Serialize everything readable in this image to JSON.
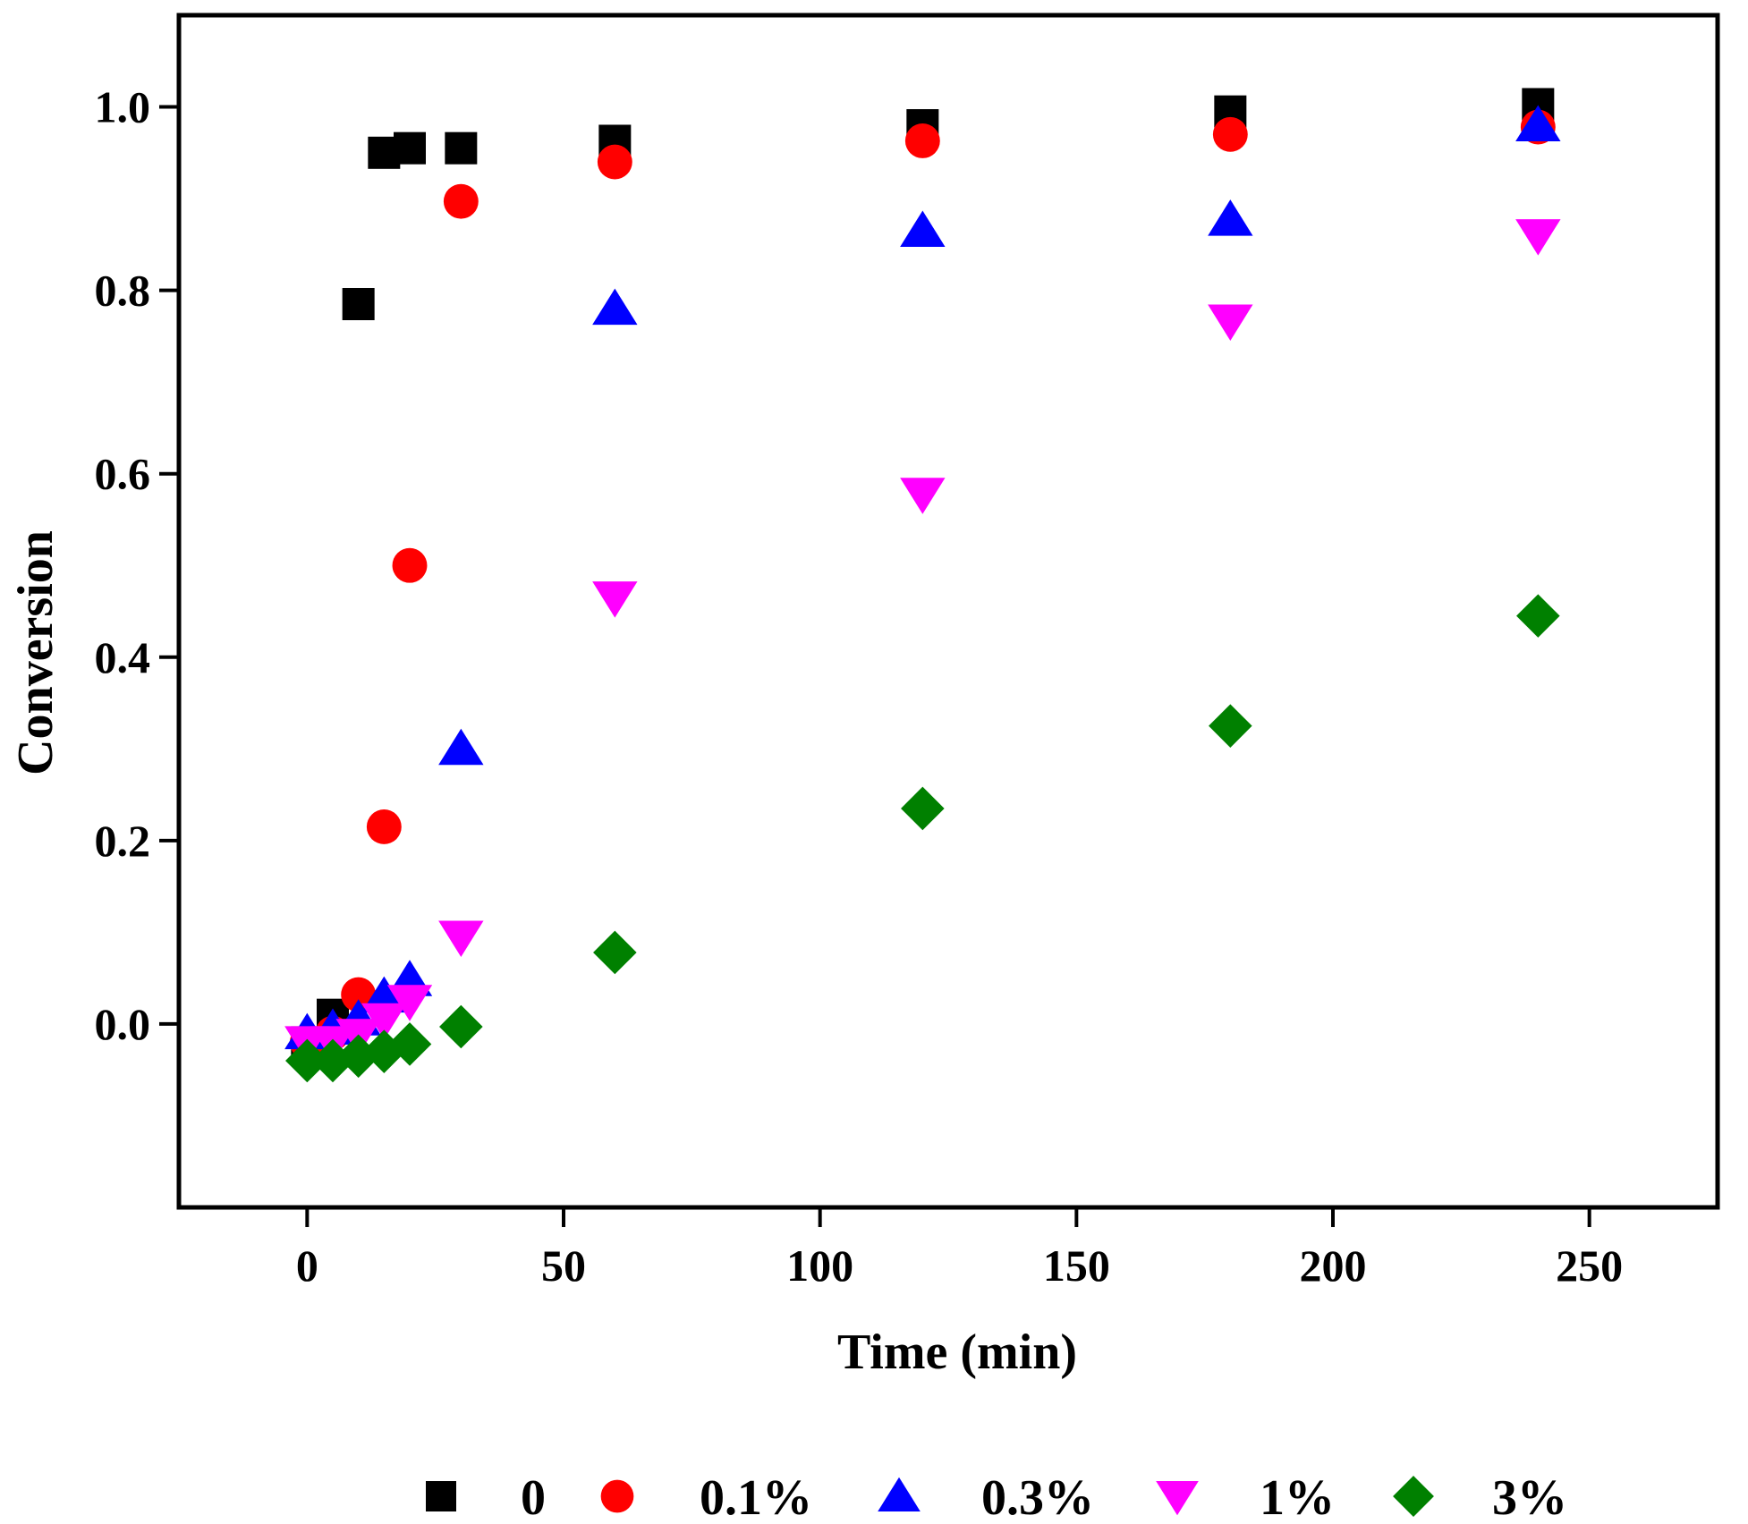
{
  "chart_data": {
    "type": "scatter",
    "title": "",
    "xlabel": "Time (min)",
    "ylabel": "Conversion",
    "xlim": [
      -25,
      275
    ],
    "ylim": [
      -0.2,
      1.1
    ],
    "xticks": [
      0,
      50,
      100,
      150,
      200,
      250
    ],
    "xtick_labels": [
      "0",
      "50",
      "100",
      "150",
      "200",
      "250"
    ],
    "yticks": [
      0.0,
      0.2,
      0.4,
      0.6,
      0.8,
      1.0
    ],
    "ytick_labels": [
      "0.0",
      "0.2",
      "0.4",
      "0.6",
      "0.8",
      "1.0"
    ],
    "grid": false,
    "legend_position": "bottom",
    "series": [
      {
        "name": "0",
        "marker": "square",
        "color": "#000000",
        "x": [
          0,
          5,
          10,
          15,
          20,
          30,
          60,
          120,
          180,
          240
        ],
        "y": [
          -0.02,
          0.01,
          0.785,
          0.95,
          0.955,
          0.955,
          0.963,
          0.98,
          0.995,
          1.003
        ]
      },
      {
        "name": "0.1%",
        "marker": "circle",
        "color": "#ff0000",
        "x": [
          0,
          5,
          10,
          15,
          20,
          30,
          60,
          120,
          180,
          240
        ],
        "y": [
          -0.02,
          -0.01,
          0.032,
          0.215,
          0.5,
          0.897,
          0.94,
          0.963,
          0.97,
          0.978
        ]
      },
      {
        "name": "0.3%",
        "marker": "triangle-up",
        "color": "#0000ff",
        "x": [
          0,
          5,
          10,
          15,
          20,
          30,
          60,
          120,
          180,
          240
        ],
        "y": [
          -0.01,
          -0.005,
          0.005,
          0.03,
          0.048,
          0.3,
          0.78,
          0.865,
          0.877,
          0.98
        ]
      },
      {
        "name": "1%",
        "marker": "triangle-down",
        "color": "#ff00ff",
        "x": [
          0,
          5,
          10,
          15,
          20,
          30,
          60,
          120,
          180,
          240
        ],
        "y": [
          -0.02,
          -0.02,
          -0.012,
          0.005,
          0.025,
          0.095,
          0.465,
          0.578,
          0.767,
          0.86
        ]
      },
      {
        "name": "3%",
        "marker": "diamond",
        "color": "#008000",
        "x": [
          0,
          5,
          10,
          15,
          20,
          30,
          60,
          120,
          180,
          240
        ],
        "y": [
          -0.04,
          -0.04,
          -0.035,
          -0.03,
          -0.022,
          -0.003,
          0.078,
          0.235,
          0.325,
          0.445
        ]
      }
    ]
  }
}
